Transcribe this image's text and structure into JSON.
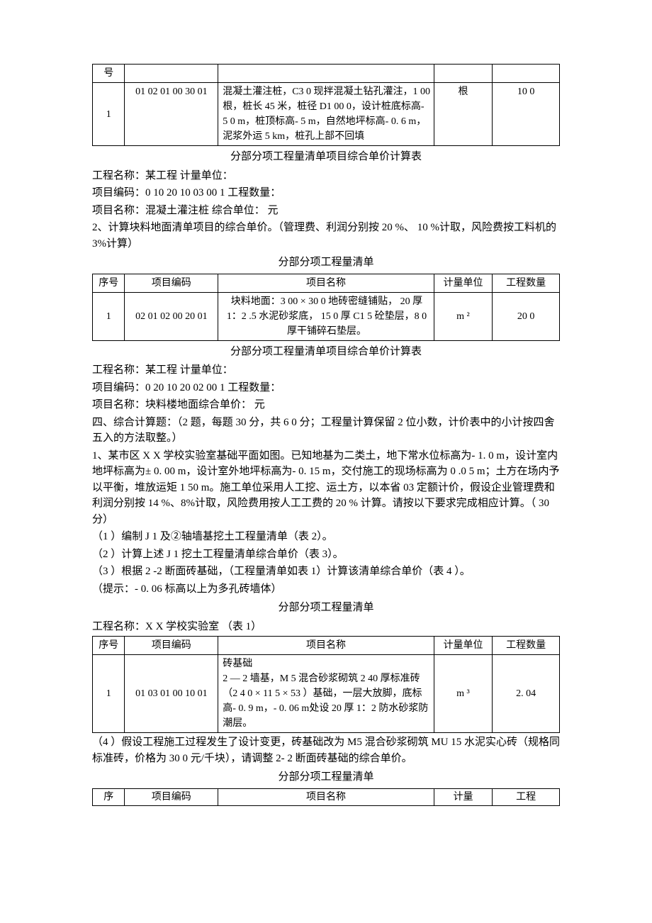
{
  "table1": {
    "seq_header_part": "号",
    "row": {
      "seq": "1",
      "code": "01 02 01 00 30 01",
      "name": "混凝土灌注桩，C3 0 现拌混凝土钻孔灌注，1 00 根，桩长 45 米，桩径 D1 00 0，设计桩底标高- 5 0 m，桩顶标高- 5 m，自然地坪标高- 0. 6 m，泥浆外运 5 km，桩孔上部不回填",
      "unit": "根",
      "qty": "10 0"
    }
  },
  "section1": {
    "title": "分部分项工程量清单项目综合单价计算表",
    "line1": "工程名称：某工程 计量单位：",
    "line2": "项目编码：0 10 20 10 03 00 1   工程数量：",
    "line3": "项目名称：混凝土灌注桩  综合单位：  元",
    "para2": " 2、计算块料地面清单项目的综合单价。（管理费、利润分别按 20 %、 10 %计取，风险费按工料机的 3%计算）",
    "list_title": "分部分项工程量清单"
  },
  "table2": {
    "headers": {
      "seq": "序号",
      "code": "项目编码",
      "name": "项目名称",
      "unit": "计量单位",
      "qty": "工程数量"
    },
    "row": {
      "seq": "1",
      "code": "02 01 02 00 20 01",
      "name": "块料地面：3 00 × 30 0 地砖密缝铺贴， 20 厚 1：2 .5 水泥砂浆底， 15 0 厚 C1 5 砼垫层，8 0 厚干铺碎石垫层。",
      "unit": "m ²",
      "qty": "20 0"
    }
  },
  "section2": {
    "title": "分部分项工程量清单项目综合单价计算表",
    "line1": "工程名称：某工程  计量单位：",
    "line2": "项目编码：0 20 10 20 02 00 1  工程数量：",
    "line3": "项目名称：块料楼地面综合单价：  元"
  },
  "section3": {
    "para1": "四、综合计算题：（2 题，每题 30 分，共 6 0 分；工程量计算保留 2 位小数，计价表中的小计按四舍五入的方法取整。）",
    "para2": " 1、某市区 X X 学校实验室基础平面如图。已知地基为二类土，地下常水位标高为- 1. 0 m，设计室内地坪标高为± 0. 00 m，设计室外地坪标高为- 0. 15 m，交付施工的现场标高为 0 .0 5 m；土方在场内予以平衡，堆放运矩 1 50 m。施工单位采用人工挖、运土方，以本省 03 定额计价，假设企业管理费和利润分别按 14 %、8%计取，风险费用按人工工费的 20 % 计算。请按以下要求完成相应计算。（ 30 分）",
    "item1": "（1 ）编制 J 1 及②轴墙基挖土工程量清单（表 2）。",
    "item2": "（2 ）计算上述 J 1 挖土工程量清单综合单价（表 3）。",
    "item3": "（3 ）根据 2 -2 断面砖基础，（工程量清单如表 1）计算该清单综合单价（表 4 ）。",
    "item4": "（提示：- 0. 06 标高以上为多孔砖墙体）",
    "list_title": "分部分项工程量清单",
    "line_name": "工程名称：X X 学校实验室 （表 1）"
  },
  "table3": {
    "headers": {
      "seq": "序号",
      "code": "项目编码",
      "name": "项目名称",
      "unit": "计量单位",
      "qty": "工程数量"
    },
    "row": {
      "seq": "1",
      "code": "01 03 01 00 10 01",
      "name": "砖基础\n2 — 2 墙基，M 5 混合砂浆砌筑 2 40 厚标准砖（2 4 0 × 11 5 × 53 ）基础，一层大放脚，底标高- 0. 9 m，- 0. 06 m处设 20 厚 1：2 防水砂浆防潮层。",
      "unit": "m ³",
      "qty": "2.  04"
    }
  },
  "section4": {
    "para": "（4 ）假设工程施工过程发生了设计变更，砖基础改为 M5 混合砂浆砌筑 MU 15 水泥实心砖（规格同标准砖，价格为 30 0 元/千块），请调整 2- 2 断面砖基础的综合单价。",
    "list_title": "分部分项工程量清单"
  },
  "table4": {
    "headers": {
      "seq": "序",
      "code": "项目编码",
      "name": "项目名称",
      "unit": "计量",
      "qty": "工程"
    }
  }
}
